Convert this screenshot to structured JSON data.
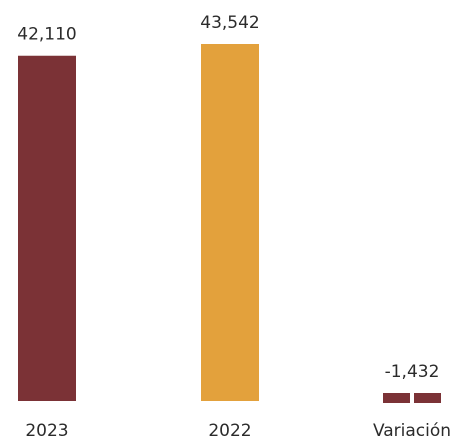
{
  "chart_data": {
    "type": "bar",
    "categories": [
      "2023",
      "2022",
      "Variación"
    ],
    "values": [
      42110,
      43542,
      -1432
    ],
    "value_labels": [
      "42,110",
      "43,542",
      "-1,432"
    ],
    "colors": [
      "#7b3236",
      "#e3a13c",
      "#7b3236"
    ],
    "title": "",
    "xlabel": "",
    "ylabel": "",
    "ylim": [
      0,
      43542
    ],
    "grid": false,
    "legend": "none"
  }
}
